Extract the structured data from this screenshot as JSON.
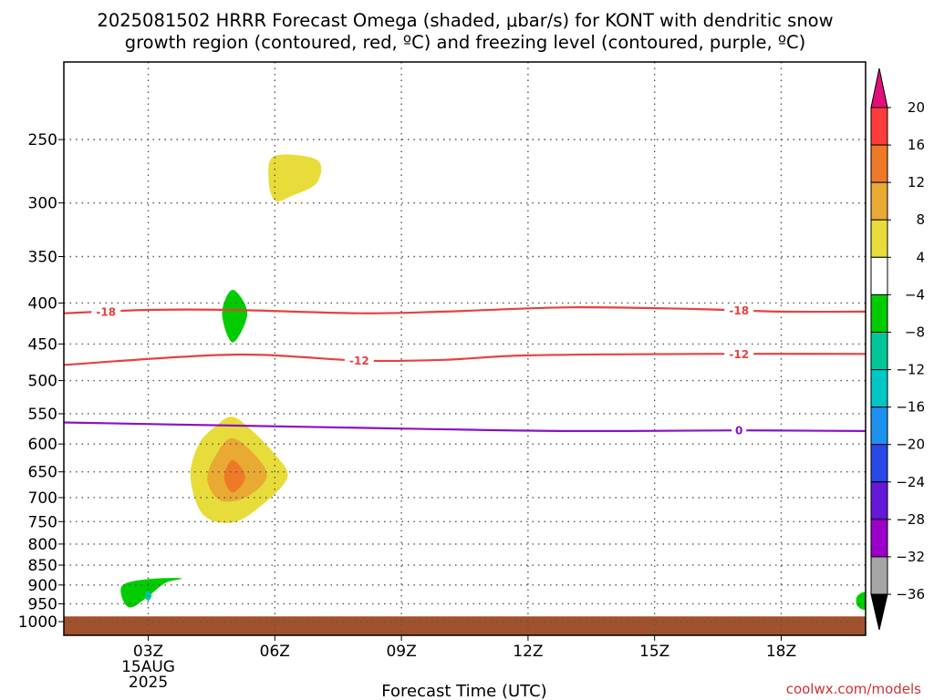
{
  "chart_data": {
    "type": "contour",
    "title_line1": "2025081502 HRRR Forecast Omega (shaded, μbar/s) for KONT with dendritic snow",
    "title_line2": "growth region (contoured, red, ºC) and freezing level (contoured, purple, ºC)",
    "xlabel": "Forecast Time (UTC)",
    "credit": "coolwx.com/models",
    "y_scale": "log-pressure",
    "y_range_hPa": [
      1040,
      200
    ],
    "y_ticks": [
      250,
      300,
      350,
      400,
      450,
      500,
      550,
      600,
      650,
      700,
      750,
      800,
      850,
      900,
      950,
      1000
    ],
    "x_range_hours": [
      1.0,
      20.0
    ],
    "x_ticks": [
      {
        "hour": 3,
        "label": "03Z",
        "sub1": "15AUG",
        "sub2": "2025"
      },
      {
        "hour": 6,
        "label": "06Z",
        "sub1": "",
        "sub2": ""
      },
      {
        "hour": 9,
        "label": "09Z",
        "sub1": "",
        "sub2": ""
      },
      {
        "hour": 12,
        "label": "12Z",
        "sub1": "",
        "sub2": ""
      },
      {
        "hour": 15,
        "label": "15Z",
        "sub1": "",
        "sub2": ""
      },
      {
        "hour": 18,
        "label": "18Z",
        "sub1": "",
        "sub2": ""
      }
    ],
    "grid": true,
    "colorbar": {
      "levels": [
        "20",
        "16",
        "12",
        "8",
        "4",
        "−4",
        "−8",
        "−12",
        "−16",
        "−20",
        "−24",
        "−28",
        "−32",
        "−36"
      ],
      "colors": [
        "#ff3b3b",
        "#ee7a28",
        "#e8aa32",
        "#e8dc3a",
        "#ffffff",
        "#00cc00",
        "#00c79a",
        "#00c6c6",
        "#1c92f0",
        "#2848e8",
        "#6418d8",
        "#9b00c8",
        "#a5a5a5"
      ],
      "top_arrow_color": "#e01077",
      "bottom_arrow_color": "#000000"
    },
    "ground": {
      "color": "#a0522d",
      "top_hPa": 985
    },
    "contours": [
      {
        "label": "-18",
        "color": "#e84040",
        "labels_at_hours": [
          2.0,
          17.0
        ],
        "points": [
          [
            1.0,
            412
          ],
          [
            3.0,
            408
          ],
          [
            5.0,
            408
          ],
          [
            8.0,
            412
          ],
          [
            10.0,
            410
          ],
          [
            13.0,
            405
          ],
          [
            16.0,
            407
          ],
          [
            18.0,
            410
          ],
          [
            20.0,
            410
          ]
        ]
      },
      {
        "label": "-12",
        "color": "#e84040",
        "labels_at_hours": [
          8.0,
          17.0
        ],
        "points": [
          [
            1.0,
            478
          ],
          [
            5.0,
            464
          ],
          [
            8.0,
            472
          ],
          [
            10.0,
            471
          ],
          [
            12.0,
            465
          ],
          [
            16.0,
            463
          ],
          [
            20.0,
            463
          ]
        ]
      },
      {
        "label": "0",
        "color": "#8a10c8",
        "labels_at_hours": [
          17.0
        ],
        "points": [
          [
            1.0,
            564
          ],
          [
            5.0,
            569
          ],
          [
            9.0,
            574
          ],
          [
            13.0,
            578
          ],
          [
            17.0,
            577
          ],
          [
            20.0,
            578
          ]
        ]
      }
    ],
    "omega_regions": [
      {
        "value_range": "4 to 8",
        "color": "#e8dc3a",
        "points": [
          [
            5.0,
            555
          ],
          [
            5.5,
            580
          ],
          [
            6.0,
            618
          ],
          [
            6.3,
            660
          ],
          [
            5.7,
            715
          ],
          [
            5.0,
            752
          ],
          [
            4.3,
            735
          ],
          [
            4.0,
            660
          ],
          [
            4.2,
            600
          ],
          [
            4.6,
            570
          ]
        ]
      },
      {
        "value_range": "8 to 12",
        "color": "#e8aa32",
        "points": [
          [
            5.0,
            590
          ],
          [
            5.6,
            625
          ],
          [
            5.8,
            662
          ],
          [
            5.3,
            700
          ],
          [
            4.7,
            705
          ],
          [
            4.4,
            665
          ],
          [
            4.6,
            620
          ]
        ]
      },
      {
        "value_range": "12 to 16",
        "color": "#ee7a28",
        "points": [
          [
            5.0,
            628
          ],
          [
            5.3,
            660
          ],
          [
            5.0,
            690
          ],
          [
            4.8,
            660
          ]
        ]
      },
      {
        "value_range": "4 to 8",
        "color": "#e8dc3a",
        "points": [
          [
            6.0,
            262
          ],
          [
            7.0,
            265
          ],
          [
            7.0,
            283
          ],
          [
            6.4,
            294
          ],
          [
            6.0,
            298
          ],
          [
            5.85,
            280
          ]
        ]
      },
      {
        "value_range": "-8 to -4",
        "color": "#00cc00",
        "points": [
          [
            5.0,
            385
          ],
          [
            5.35,
            412
          ],
          [
            5.0,
            448
          ],
          [
            4.75,
            412
          ]
        ]
      },
      {
        "value_range": "-8 to -4",
        "color": "#00cc00",
        "points": [
          [
            2.4,
            900
          ],
          [
            3.0,
            885
          ],
          [
            3.8,
            883
          ],
          [
            3.4,
            895
          ],
          [
            3.0,
            930
          ],
          [
            2.6,
            960
          ],
          [
            2.4,
            940
          ]
        ]
      },
      {
        "value_range": "-12 to -8",
        "color": "#00c79a",
        "points": [
          [
            3.0,
            915
          ],
          [
            3.08,
            928
          ],
          [
            3.0,
            942
          ],
          [
            2.92,
            928
          ]
        ]
      },
      {
        "value_range": "-8 to -4",
        "color": "#00cc00",
        "points": [
          [
            19.8,
            930
          ],
          [
            20.0,
            920
          ],
          [
            20.0,
            965
          ],
          [
            19.8,
            955
          ]
        ]
      }
    ]
  }
}
